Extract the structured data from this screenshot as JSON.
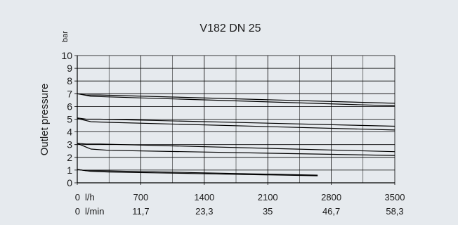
{
  "chart_data": {
    "type": "line",
    "title": "V182 DN 25",
    "ylabel": "Outlet pressure",
    "yunit": "bar",
    "ylim": [
      0,
      10
    ],
    "yticks": [
      "0",
      "1",
      "2",
      "3",
      "4",
      "5",
      "6",
      "7",
      "8",
      "9",
      "10"
    ],
    "xlim": [
      0,
      3500
    ],
    "x_axis_rows": [
      {
        "unit": "l/h",
        "ticks": [
          "0",
          "700",
          "1400",
          "2100",
          "2800",
          "3500"
        ]
      },
      {
        "unit": "l/min",
        "ticks": [
          "0",
          "11,7",
          "23,3",
          "35",
          "46,7",
          "58,3"
        ]
      }
    ],
    "grid": true,
    "colors": {
      "background": "#e6eaee",
      "line": "#000000",
      "grid": "#000000"
    },
    "series": [
      {
        "x": [
          0,
          100,
          250,
          3500
        ],
        "y": [
          7.0,
          6.9,
          6.9,
          6.25
        ]
      },
      {
        "x": [
          0,
          150,
          350,
          3500
        ],
        "y": [
          7.0,
          6.8,
          6.75,
          6.05
        ]
      },
      {
        "x": [
          0,
          100,
          250,
          3500
        ],
        "y": [
          5.1,
          5.0,
          5.0,
          4.45
        ]
      },
      {
        "x": [
          0,
          150,
          350,
          3500
        ],
        "y": [
          5.05,
          4.8,
          4.75,
          4.15
        ]
      },
      {
        "x": [
          0,
          100,
          250,
          3500
        ],
        "y": [
          3.1,
          3.05,
          3.05,
          2.45
        ]
      },
      {
        "x": [
          0,
          150,
          350,
          3500
        ],
        "y": [
          3.1,
          2.65,
          2.55,
          2.15
        ]
      },
      {
        "x": [
          0,
          100,
          250,
          2650
        ],
        "y": [
          1.05,
          0.95,
          0.95,
          0.6
        ]
      },
      {
        "x": [
          0,
          150,
          350,
          2650
        ],
        "y": [
          1.05,
          0.9,
          0.85,
          0.55
        ]
      }
    ]
  }
}
